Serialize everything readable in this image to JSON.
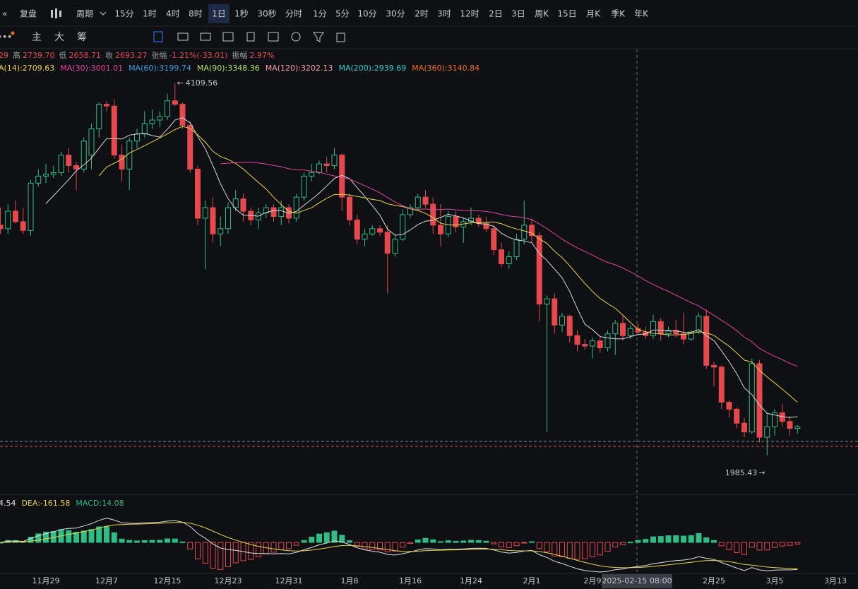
{
  "toolbar": {
    "replay": "复盘",
    "period": "周期",
    "intervals": [
      "15分",
      "1时",
      "4时",
      "8时",
      "1日",
      "1秒",
      "30秒",
      "分时",
      "1分",
      "5分",
      "10分",
      "30分",
      "2时",
      "3时",
      "12时",
      "2日",
      "3日",
      "周K",
      "15日",
      "月K",
      "季K",
      "年K"
    ],
    "active": 4
  },
  "tools": {
    "more": "•••",
    "items": [
      "主",
      "大",
      "筹"
    ]
  },
  "chart_data": {
    "type": "candlestick",
    "info": {
      "prefix": "29",
      "items": [
        {
          "label": "高",
          "value": "2739.70"
        },
        {
          "label": "低",
          "value": "2658.71"
        },
        {
          "label": "收",
          "value": "2693.27"
        },
        {
          "label": "张幅",
          "value": "-1.21%(-33.01)"
        },
        {
          "label": "振幅",
          "value": "2.97%"
        }
      ]
    },
    "ma_legend": [
      {
        "text": "A(14):2709.63",
        "color": "#e8d44a"
      },
      {
        "text": "MA(30):3001.01",
        "color": "#e0459b"
      },
      {
        "text": "MA(60):3199.74",
        "color": "#3d9be0"
      },
      {
        "text": "MA(90):3348.36",
        "color": "#b3e06a"
      },
      {
        "text": "MA(120):3202.13",
        "color": "#f0a0a0"
      },
      {
        "text": "MA(200):2939.69",
        "color": "#2fd0d0"
      },
      {
        "text": "MA(360):3140.84",
        "color": "#f07028"
      }
    ],
    "up_color": "#2ebd85",
    "down_color": "#e5484d",
    "ylim": [
      1784,
      4303
    ],
    "max_label": "4109.56",
    "min_label": "1985.43",
    "crosshair_label": "2025-02-15 08:00",
    "macd_legend": [
      {
        "text": "4.54",
        "color": "#e0e0e0"
      },
      {
        "text": "DEA:-161.58",
        "color": "#e8d44a"
      },
      {
        "text": "MACD:14.08",
        "color": "#2ebd85"
      }
    ],
    "categories": [
      null,
      null,
      null,
      null,
      null,
      null,
      "11月29",
      null,
      null,
      null,
      null,
      null,
      null,
      null,
      "12月7",
      null,
      null,
      null,
      null,
      null,
      null,
      null,
      "12月15",
      null,
      null,
      null,
      null,
      null,
      null,
      null,
      "12月23",
      null,
      null,
      null,
      null,
      null,
      null,
      null,
      "12月31",
      null,
      null,
      null,
      null,
      null,
      null,
      null,
      "1月8",
      null,
      null,
      null,
      null,
      null,
      null,
      null,
      "1月16",
      null,
      null,
      null,
      null,
      null,
      null,
      null,
      "1月24",
      null,
      null,
      null,
      null,
      null,
      null,
      null,
      "2月1",
      null,
      null,
      null,
      null,
      null,
      null,
      null,
      "2月9",
      null,
      null,
      null,
      null,
      null,
      null,
      null,
      null,
      null,
      null,
      null,
      null,
      null,
      null,
      null,
      "2月25",
      null,
      null,
      null,
      null,
      null,
      null,
      null,
      "3月5",
      null,
      null,
      null,
      null,
      null,
      null,
      null,
      "3月13"
    ],
    "candles": [
      [
        3300,
        3400,
        3250,
        3280
      ],
      [
        3280,
        3420,
        3250,
        3380
      ],
      [
        3380,
        3440,
        3310,
        3320
      ],
      [
        3320,
        3400,
        3250,
        3270
      ],
      [
        3270,
        3560,
        3240,
        3540
      ],
      [
        3540,
        3620,
        3520,
        3580
      ],
      [
        3580,
        3650,
        3540,
        3590
      ],
      [
        3590,
        3640,
        3570,
        3600
      ],
      [
        3600,
        3720,
        3580,
        3700
      ],
      [
        3700,
        3740,
        3600,
        3640
      ],
      [
        3640,
        3660,
        3500,
        3620
      ],
      [
        3620,
        3800,
        3600,
        3780
      ],
      [
        3700,
        3880,
        3620,
        3850
      ],
      [
        3850,
        4000,
        3800,
        3990
      ],
      [
        3990,
        4010,
        3950,
        3980
      ],
      [
        3980,
        4020,
        3680,
        3700
      ],
      [
        3700,
        3760,
        3550,
        3620
      ],
      [
        3620,
        3800,
        3500,
        3780
      ],
      [
        3780,
        3850,
        3740,
        3820
      ],
      [
        3820,
        3950,
        3800,
        3880
      ],
      [
        3880,
        3960,
        3850,
        3900
      ],
      [
        3900,
        3950,
        3860,
        3920
      ],
      [
        3920,
        4050,
        3900,
        4010
      ],
      [
        4010,
        4109.56,
        3980,
        3990
      ],
      [
        3990,
        4000,
        3850,
        3870
      ],
      [
        3870,
        3890,
        3600,
        3620
      ],
      [
        3620,
        3640,
        3300,
        3340
      ],
      [
        3340,
        3440,
        3050,
        3400
      ],
      [
        3400,
        3460,
        3200,
        3250
      ],
      [
        3250,
        3350,
        3180,
        3280
      ],
      [
        3280,
        3430,
        3250,
        3400
      ],
      [
        3400,
        3500,
        3380,
        3450
      ],
      [
        3450,
        3480,
        3320,
        3380
      ],
      [
        3380,
        3400,
        3300,
        3330
      ],
      [
        3330,
        3400,
        3280,
        3370
      ],
      [
        3370,
        3420,
        3340,
        3400
      ],
      [
        3400,
        3420,
        3320,
        3350
      ],
      [
        3350,
        3440,
        3300,
        3400
      ],
      [
        3400,
        3420,
        3310,
        3340
      ],
      [
        3340,
        3480,
        3320,
        3460
      ],
      [
        3460,
        3600,
        3440,
        3580
      ],
      [
        3580,
        3650,
        3550,
        3600
      ],
      [
        3600,
        3670,
        3590,
        3650
      ],
      [
        3650,
        3690,
        3600,
        3640
      ],
      [
        3640,
        3740,
        3620,
        3700
      ],
      [
        3700,
        3710,
        3380,
        3460
      ],
      [
        3460,
        3480,
        3300,
        3330
      ],
      [
        3330,
        3360,
        3190,
        3220
      ],
      [
        3220,
        3280,
        3180,
        3250
      ],
      [
        3250,
        3300,
        3240,
        3280
      ],
      [
        3280,
        3300,
        3240,
        3260
      ],
      [
        3260,
        3300,
        2910,
        3140
      ],
      [
        3140,
        3250,
        3120,
        3220
      ],
      [
        3220,
        3390,
        3210,
        3360
      ],
      [
        3360,
        3420,
        3340,
        3400
      ],
      [
        3400,
        3480,
        3380,
        3460
      ],
      [
        3460,
        3500,
        3400,
        3420
      ],
      [
        3420,
        3460,
        3250,
        3300
      ],
      [
        3300,
        3420,
        3180,
        3250
      ],
      [
        3250,
        3380,
        3230,
        3350
      ],
      [
        3350,
        3380,
        3260,
        3290
      ],
      [
        3290,
        3340,
        3200,
        3320
      ],
      [
        3320,
        3400,
        3300,
        3340
      ],
      [
        3340,
        3360,
        3290,
        3310
      ],
      [
        3310,
        3350,
        3260,
        3280
      ],
      [
        3280,
        3300,
        3130,
        3160
      ],
      [
        3160,
        3200,
        3060,
        3080
      ],
      [
        3080,
        3150,
        3050,
        3120
      ],
      [
        3120,
        3250,
        3100,
        3220
      ],
      [
        3220,
        3440,
        3190,
        3300
      ],
      [
        3300,
        3340,
        3200,
        3240
      ],
      [
        3240,
        3260,
        2750,
        2850
      ],
      [
        2850,
        2900,
        2120,
        2880
      ],
      [
        2880,
        2910,
        2680,
        2730
      ],
      [
        2730,
        2800,
        2690,
        2780
      ],
      [
        2780,
        2790,
        2630,
        2670
      ],
      [
        2670,
        2700,
        2580,
        2620
      ],
      [
        2620,
        2650,
        2590,
        2610
      ],
      [
        2610,
        2660,
        2540,
        2640
      ],
      [
        2640,
        2660,
        2570,
        2600
      ],
      [
        2600,
        2700,
        2580,
        2680
      ],
      [
        2680,
        2760,
        2560,
        2740
      ],
      [
        2740,
        2780,
        2640,
        2670
      ],
      [
        2670,
        2730,
        2650,
        2710
      ],
      [
        2710,
        2740,
        2680,
        2690
      ],
      [
        2690,
        2720,
        2650,
        2670
      ],
      [
        2670,
        2790,
        2650,
        2750
      ],
      [
        2750,
        2770,
        2640,
        2680
      ],
      [
        2680,
        2720,
        2660,
        2700
      ],
      [
        2700,
        2760,
        2660,
        2680
      ],
      [
        2680,
        2800,
        2620,
        2650
      ],
      [
        2650,
        2700,
        2640,
        2690
      ],
      [
        2690,
        2800,
        2680,
        2780
      ],
      [
        2780,
        2820,
        2480,
        2500
      ],
      [
        2500,
        2520,
        2380,
        2490
      ],
      [
        2490,
        2500,
        2250,
        2290
      ],
      [
        2290,
        2300,
        2200,
        2250
      ],
      [
        2250,
        2260,
        2140,
        2170
      ],
      [
        2170,
        2200,
        2090,
        2120
      ],
      [
        2120,
        2540,
        2110,
        2510
      ],
      [
        2510,
        2530,
        2060,
        2090
      ],
      [
        2090,
        2220,
        1985.43,
        2150
      ],
      [
        2150,
        2250,
        2100,
        2230
      ],
      [
        2230,
        2280,
        2150,
        2180
      ],
      [
        2180,
        2210,
        2100,
        2140
      ],
      [
        2140,
        2160,
        2110,
        2150
      ],
      null,
      null,
      null,
      null,
      null
    ]
  }
}
